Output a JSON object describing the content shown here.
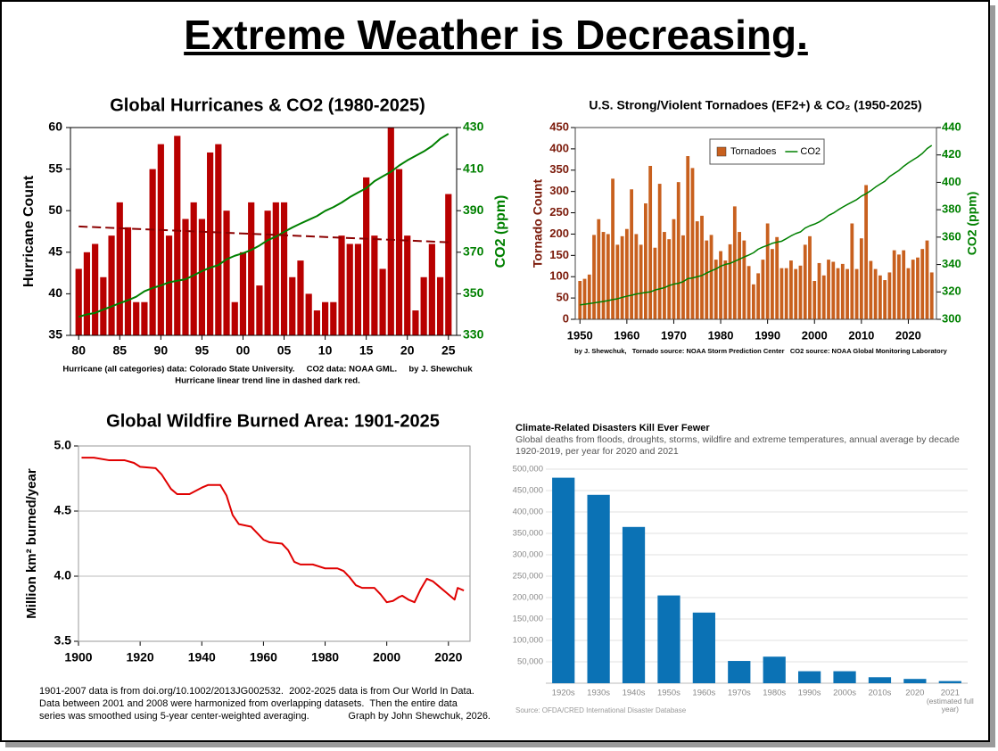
{
  "title": "Extreme Weather is Decreasing.",
  "chart_data": [
    {
      "type": "bar",
      "title": "Global Hurricanes & CO2  (1980-2025)",
      "ylabel": "Hurricane Count",
      "y2label": "CO2 (ppm)",
      "y2color": "#008000",
      "x": [
        1980,
        1981,
        1982,
        1983,
        1984,
        1985,
        1986,
        1987,
        1988,
        1989,
        1990,
        1991,
        1992,
        1993,
        1994,
        1995,
        1996,
        1997,
        1998,
        1999,
        2000,
        2001,
        2002,
        2003,
        2004,
        2005,
        2006,
        2007,
        2008,
        2009,
        2010,
        2011,
        2012,
        2013,
        2014,
        2015,
        2016,
        2017,
        2018,
        2019,
        2020,
        2021,
        2022,
        2023,
        2024,
        2025
      ],
      "xlim": [
        1979,
        2026
      ],
      "xticks": [
        {
          "value": 1980,
          "label": "80"
        },
        {
          "value": 1985,
          "label": "85"
        },
        {
          "value": 1990,
          "label": "90"
        },
        {
          "value": 1995,
          "label": "95"
        },
        {
          "value": 2000,
          "label": "00"
        },
        {
          "value": 2005,
          "label": "05"
        },
        {
          "value": 2010,
          "label": "10"
        },
        {
          "value": 2015,
          "label": "15"
        },
        {
          "value": 2020,
          "label": "20"
        },
        {
          "value": 2025,
          "label": "25"
        }
      ],
      "ylim": [
        35,
        60
      ],
      "yticks": [
        35,
        40,
        45,
        50,
        55,
        60
      ],
      "y2lim": [
        330,
        430
      ],
      "y2ticks": [
        330,
        350,
        370,
        390,
        410,
        430
      ],
      "series": [
        {
          "type": "bar",
          "color": "#b80000",
          "values": [
            43,
            45,
            46,
            42,
            47,
            51,
            48,
            39,
            39,
            55,
            58,
            47,
            59,
            49,
            51,
            49,
            57,
            58,
            50,
            39,
            45,
            51,
            41,
            50,
            51,
            51,
            42,
            44,
            40,
            38,
            39,
            39,
            47,
            46,
            46,
            54,
            47,
            43,
            60,
            55,
            47,
            38,
            42,
            46,
            42,
            52
          ]
        },
        {
          "type": "line",
          "axis": "y2",
          "color": "#008000",
          "values": [
            338.9,
            340.1,
            340.8,
            342.4,
            343.9,
            345.5,
            346.9,
            348.6,
            351.2,
            352.8,
            354.0,
            355.5,
            356.3,
            357.0,
            358.9,
            360.9,
            362.6,
            363.8,
            366.6,
            368.3,
            369.5,
            371.1,
            373.2,
            375.8,
            377.5,
            379.8,
            381.9,
            383.8,
            385.6,
            387.4,
            389.9,
            391.7,
            393.9,
            396.5,
            398.7,
            400.8,
            404.2,
            406.5,
            408.7,
            411.7,
            414.2,
            416.4,
            418.5,
            421.1,
            424.6,
            427.0
          ]
        }
      ],
      "trend": {
        "x": [
          1980,
          2025
        ],
        "values": [
          48.1,
          46.2
        ],
        "color": "#8b0000"
      },
      "notes": [
        "Hurricane (all categories) data: Colorado State University.     CO2 data: NOAA GML.     by J. Shewchuk",
        "Hurricane linear trend line in dashed dark red."
      ]
    },
    {
      "type": "bar",
      "title": "U.S. Strong/Violent Tornadoes (EF2+) & CO₂  (1950-2025)",
      "ylabel": "Tornado Count",
      "ycolor": "#7b1a0a",
      "y2label": "CO2 (ppm)",
      "y2color": "#008000",
      "x": [
        1950,
        1951,
        1952,
        1953,
        1954,
        1955,
        1956,
        1957,
        1958,
        1959,
        1960,
        1961,
        1962,
        1963,
        1964,
        1965,
        1966,
        1967,
        1968,
        1969,
        1970,
        1971,
        1972,
        1973,
        1974,
        1975,
        1976,
        1977,
        1978,
        1979,
        1980,
        1981,
        1982,
        1983,
        1984,
        1985,
        1986,
        1987,
        1988,
        1989,
        1990,
        1991,
        1992,
        1993,
        1994,
        1995,
        1996,
        1997,
        1998,
        1999,
        2000,
        2001,
        2002,
        2003,
        2004,
        2005,
        2006,
        2007,
        2008,
        2009,
        2010,
        2011,
        2012,
        2013,
        2014,
        2015,
        2016,
        2017,
        2018,
        2019,
        2020,
        2021,
        2022,
        2023,
        2024,
        2025
      ],
      "xlim": [
        1949,
        2026
      ],
      "xticks": [
        1950,
        1960,
        1970,
        1980,
        1990,
        2000,
        2010,
        2020
      ],
      "ylim": [
        0,
        450
      ],
      "yticks": [
        0,
        50,
        100,
        150,
        200,
        250,
        300,
        350,
        400,
        450
      ],
      "y2lim": [
        300,
        440
      ],
      "y2ticks": [
        300,
        320,
        340,
        360,
        380,
        400,
        420,
        440
      ],
      "legend": "upper center",
      "series": [
        {
          "type": "bar",
          "name": "Tornadoes",
          "color": "#c8601e",
          "values": [
            90,
            95,
            105,
            198,
            235,
            205,
            200,
            330,
            175,
            195,
            212,
            305,
            200,
            175,
            272,
            360,
            168,
            318,
            205,
            188,
            235,
            322,
            197,
            383,
            355,
            230,
            243,
            185,
            198,
            140,
            160,
            138,
            176,
            265,
            205,
            185,
            125,
            82,
            108,
            140,
            225,
            165,
            193,
            120,
            120,
            138,
            118,
            126,
            175,
            195,
            90,
            132,
            103,
            140,
            135,
            120,
            130,
            118,
            225,
            118,
            190,
            315,
            137,
            118,
            103,
            92,
            110,
            162,
            152,
            162,
            120,
            140,
            145,
            165,
            185,
            110
          ]
        },
        {
          "type": "line",
          "name": "CO2",
          "axis": "y2",
          "color": "#008000",
          "values": [
            310.5,
            311.0,
            311.5,
            312.0,
            312.5,
            313.0,
            313.7,
            314.4,
            315.0,
            316.0,
            316.9,
            317.6,
            318.5,
            319.0,
            319.6,
            320.0,
            321.4,
            322.2,
            323.1,
            324.6,
            325.7,
            326.3,
            327.5,
            329.7,
            330.2,
            331.1,
            332.0,
            333.8,
            335.4,
            336.8,
            338.8,
            340.1,
            340.8,
            342.4,
            343.9,
            345.5,
            346.9,
            348.6,
            351.2,
            352.8,
            354.0,
            355.5,
            356.3,
            357.0,
            358.9,
            360.9,
            362.6,
            363.8,
            366.6,
            368.3,
            369.5,
            371.1,
            373.2,
            375.8,
            377.5,
            379.8,
            381.9,
            383.8,
            385.6,
            387.4,
            389.9,
            391.7,
            393.9,
            396.5,
            398.7,
            400.8,
            404.2,
            406.5,
            408.7,
            411.7,
            414.2,
            416.4,
            418.5,
            421.1,
            424.6,
            427.0
          ]
        }
      ],
      "notes": [
        "by J. Shewchuk,   Tornado source: NOAA Storm Prediction Center   CO2 source: NOAA Global Monitoring Laboratory"
      ]
    },
    {
      "type": "line",
      "title": "Global Wildfire Burned Area: 1901-2025",
      "ylabel": "Million km² burned/year",
      "x": [
        1901,
        1905,
        1910,
        1915,
        1918,
        1920,
        1925,
        1927,
        1930,
        1932,
        1936,
        1940,
        1942,
        1946,
        1948,
        1950,
        1952,
        1956,
        1958,
        1960,
        1962,
        1966,
        1968,
        1970,
        1972,
        1976,
        1980,
        1984,
        1986,
        1988,
        1990,
        1992,
        1996,
        1998,
        2000,
        2002,
        2004,
        2005,
        2007,
        2009,
        2011,
        2013,
        2015,
        2017,
        2019,
        2021,
        2022,
        2023,
        2025
      ],
      "xlim": [
        1900,
        2027
      ],
      "xticks": [
        1900,
        1920,
        1940,
        1960,
        1980,
        2000,
        2020
      ],
      "ylim": [
        3.5,
        5.0
      ],
      "yticks": [
        3.5,
        {
          "value": 4,
          "label": "4.0"
        },
        4.5,
        {
          "value": 5,
          "label": "5.0"
        }
      ],
      "grid": true,
      "series": [
        {
          "type": "line",
          "color": "#e00000",
          "values": [
            4.91,
            4.91,
            4.89,
            4.89,
            4.87,
            4.84,
            4.83,
            4.78,
            4.67,
            4.63,
            4.63,
            4.68,
            4.7,
            4.7,
            4.62,
            4.47,
            4.4,
            4.38,
            4.33,
            4.28,
            4.26,
            4.25,
            4.2,
            4.11,
            4.09,
            4.09,
            4.06,
            4.06,
            4.04,
            3.99,
            3.93,
            3.91,
            3.91,
            3.86,
            3.8,
            3.81,
            3.84,
            3.85,
            3.82,
            3.8,
            3.9,
            3.98,
            3.96,
            3.92,
            3.88,
            3.84,
            3.82,
            3.91,
            3.89
          ]
        }
      ],
      "notes": [
        "1901-2007 data is from doi.org/10.1002/2013JG002532.  2002-2025 data is from Our World In Data.",
        "Data between 2001 and 2008 were harmonized from overlapping datasets.  Then the entire data",
        "series was smoothed using 5-year center-weighted averaging."
      ],
      "credit": "Graph by John Shewchuk, 2026."
    },
    {
      "type": "bar",
      "title": "Climate-Related Disasters Kill Ever Fewer",
      "subtitle": [
        "Global deaths from floods, droughts, storms, wildfire and extreme temperatures, annual average by decade",
        "1920-2019, per year for 2020 and 2021"
      ],
      "categories": [
        "1920s",
        "1930s",
        "1940s",
        "1950s",
        "1960s",
        "1970s",
        "1980s",
        "1990s",
        "2000s",
        "2010s",
        "2020",
        "2021"
      ],
      "x_note": "(estimated full year)",
      "ylim": [
        0,
        500000
      ],
      "yticks": [
        {
          "value": 50000,
          "label": "50,000"
        },
        {
          "value": 100000,
          "label": "100,000"
        },
        {
          "value": 150000,
          "label": "150,000"
        },
        {
          "value": 200000,
          "label": "200,000"
        },
        {
          "value": 250000,
          "label": "250,000"
        },
        {
          "value": 300000,
          "label": "300,000"
        },
        {
          "value": 350000,
          "label": "350,000"
        },
        {
          "value": 400000,
          "label": "400,000"
        },
        {
          "value": 450000,
          "label": "450,000"
        },
        {
          "value": 500000,
          "label": "500,000"
        }
      ],
      "grid": true,
      "series": [
        {
          "type": "bar",
          "color": "#0b72b5",
          "values": [
            480000,
            440000,
            365000,
            205000,
            165000,
            52000,
            62000,
            28000,
            28000,
            14000,
            10000,
            5000
          ]
        }
      ],
      "source": "Source: OFDA/CRED International Disaster Database"
    }
  ]
}
